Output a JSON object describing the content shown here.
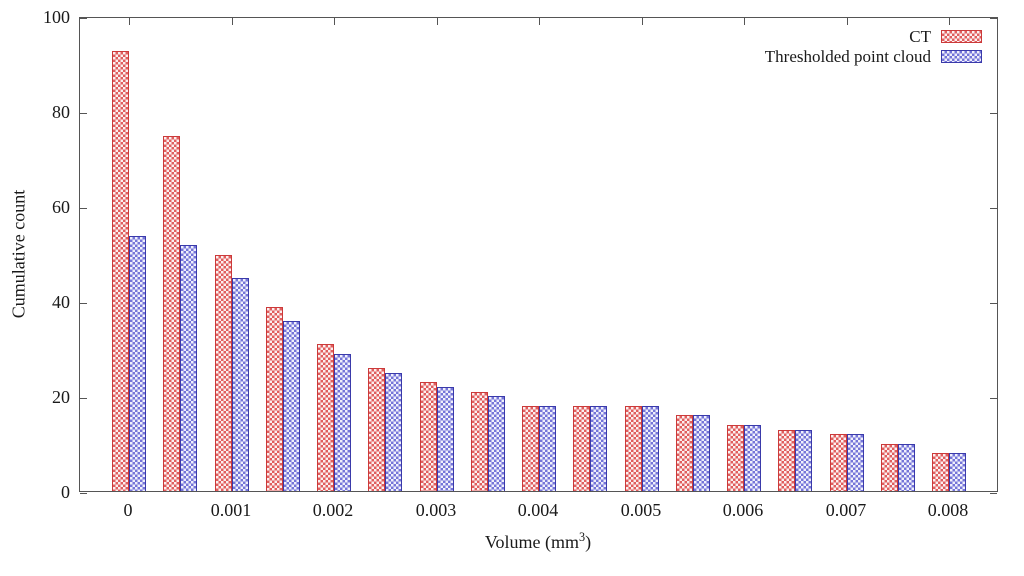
{
  "figure": {
    "background": "#ffffff",
    "axis_color": "#555555",
    "text_color": "#1a1a1a"
  },
  "chart_data": {
    "type": "bar",
    "title": "",
    "ylabel": "Cumulative count",
    "xlabel_base": "Volume (mm",
    "xlabel_sup": "3",
    "xlabel_close": ")",
    "ylim": [
      0,
      100
    ],
    "xlim": [
      -0.0005,
      0.0085
    ],
    "grid": false,
    "legend_position": "top-right",
    "yticks": [
      0,
      20,
      40,
      60,
      80,
      100
    ],
    "xtick_values": [
      0,
      0.001,
      0.002,
      0.003,
      0.004,
      0.005,
      0.006,
      0.007,
      0.008
    ],
    "xtick_labels": [
      "0",
      "0.001",
      "0.002",
      "0.003",
      "0.004",
      "0.005",
      "0.006",
      "0.007",
      "0.008"
    ],
    "x": [
      0,
      0.0005,
      0.001,
      0.0015,
      0.002,
      0.0025,
      0.003,
      0.0035,
      0.004,
      0.0045,
      0.005,
      0.0055,
      0.006,
      0.0065,
      0.007,
      0.0075,
      0.008
    ],
    "series": [
      {
        "name": "CT",
        "slug": "ct",
        "values": [
          93,
          75,
          50,
          39,
          31,
          26,
          23,
          21,
          18,
          18,
          18,
          16,
          14,
          13,
          12,
          10,
          8
        ],
        "check_color": "#e05e5e",
        "light_color": "#fbf0f0",
        "border_color": "#cb3a3a"
      },
      {
        "name": "Thresholded point cloud",
        "slug": "tpc",
        "values": [
          54,
          52,
          45,
          36,
          29,
          25,
          22,
          20,
          18,
          18,
          18,
          16,
          14,
          13,
          12,
          10,
          8
        ],
        "check_color": "#7474d8",
        "light_color": "#f0f0fb",
        "border_color": "#3a3aaa"
      }
    ]
  }
}
